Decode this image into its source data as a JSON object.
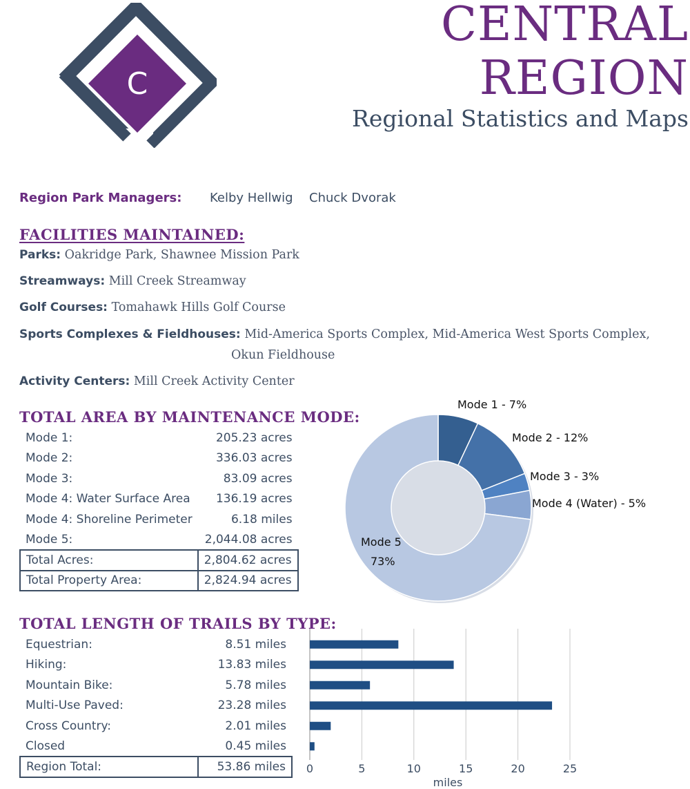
{
  "header": {
    "logo_letter": "C",
    "title_line1": "CENTRAL",
    "title_line2": "REGION",
    "subtitle": "Regional Statistics and Maps"
  },
  "managers": {
    "label": "Region Park Managers:",
    "names": [
      "Kelby Hellwig",
      "Chuck Dvorak"
    ]
  },
  "facilities": {
    "heading": "FACILITIES MAINTAINED:",
    "rows": [
      {
        "label": "Parks:",
        "value": "Oakridge Park, Shawnee Mission Park"
      },
      {
        "label": "Streamways:",
        "value": "Mill Creek Streamway"
      },
      {
        "label": "Golf Courses:",
        "value": "Tomahawk Hills Golf Course"
      },
      {
        "label": "Sports Complexes & Fieldhouses:",
        "value": "Mid-America Sports Complex, Mid-America West Sports Complex,",
        "value2": "Okun Fieldhouse"
      },
      {
        "label": "Activity Centers:",
        "value": "Mill Creek Activity Center"
      }
    ]
  },
  "area": {
    "heading": "TOTAL AREA BY MAINTENANCE MODE:",
    "rows": [
      {
        "label": "Mode 1:",
        "value": "205.23 acres"
      },
      {
        "label": "Mode 2:",
        "value": "336.03 acres"
      },
      {
        "label": "Mode 3:",
        "value": "83.09 acres"
      },
      {
        "label": "Mode 4: Water Surface Area",
        "value": "136.19 acres"
      },
      {
        "label": "Mode 4: Shoreline Perimeter",
        "value": "6.18 miles"
      },
      {
        "label": "Mode 5:",
        "value": "2,044.08 acres"
      }
    ],
    "totals": [
      {
        "label": "Total Acres:",
        "value": "2,804.62 acres"
      },
      {
        "label": "Total Property Area:",
        "value": "2,824.94 acres"
      }
    ]
  },
  "trails": {
    "heading": "TOTAL LENGTH OF TRAILS BY TYPE:",
    "rows": [
      {
        "label": "Equestrian:",
        "value": "8.51 miles"
      },
      {
        "label": "Hiking:",
        "value": "13.83 miles"
      },
      {
        "label": "Mountain Bike:",
        "value": "5.78 miles"
      },
      {
        "label": "Multi-Use Paved:",
        "value": "23.28 miles"
      },
      {
        "label": "Cross Country:",
        "value": "2.01 miles"
      },
      {
        "label": "Closed",
        "value": "0.45 miles"
      }
    ],
    "total": {
      "label": "Region Total:",
      "value": "53.86 miles"
    }
  },
  "colors": {
    "purple": "#6a2c80",
    "slate": "#3c4d63",
    "bar": "#1f4e84",
    "pie": [
      "#345f90",
      "#4471a8",
      "#4f82c2",
      "#8aa6d2",
      "#b8c8e2"
    ]
  },
  "chart_data": [
    {
      "type": "pie",
      "title": "",
      "donut": true,
      "categories": [
        "Mode 1",
        "Mode 2",
        "Mode 3",
        "Mode 4 (Water)",
        "Mode 5"
      ],
      "values": [
        7,
        12,
        3,
        5,
        73
      ],
      "labels": [
        "Mode 1 - 7%",
        "Mode 2 - 12%",
        "Mode 3 - 3%",
        "Mode 4 (Water) - 5%",
        "Mode 5",
        "73%"
      ]
    },
    {
      "type": "bar",
      "orientation": "horizontal",
      "categories": [
        "Equestrian",
        "Hiking",
        "Mountain Bike",
        "Multi-Use Paved",
        "Cross Country",
        "Closed"
      ],
      "values": [
        8.51,
        13.83,
        5.78,
        23.28,
        2.01,
        0.45
      ],
      "xlabel": "miles",
      "xlim": [
        0,
        25
      ],
      "xticks": [
        0,
        5,
        10,
        15,
        20,
        25
      ],
      "xtick_labels": [
        "0",
        "5",
        "10",
        "15",
        "20",
        "25"
      ],
      "grid": true
    }
  ]
}
